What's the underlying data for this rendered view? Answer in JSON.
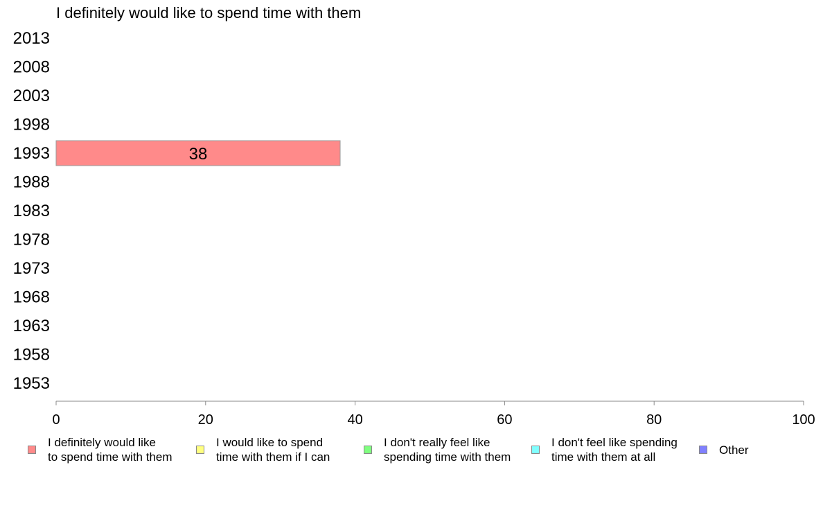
{
  "chart_data": {
    "type": "bar",
    "orientation": "horizontal",
    "title": "I definitely would like to spend time with them",
    "categories": [
      "2013",
      "2008",
      "2003",
      "1998",
      "1993",
      "1988",
      "1983",
      "1978",
      "1973",
      "1968",
      "1963",
      "1958",
      "1953"
    ],
    "series": [
      {
        "name": "I definitely would like to spend time with them",
        "color": "#ff8a8a",
        "values": [
          null,
          null,
          null,
          null,
          38,
          null,
          null,
          null,
          null,
          null,
          null,
          null,
          null
        ]
      }
    ],
    "xlim": [
      0,
      100
    ],
    "xticks": [
      "0",
      "20",
      "40",
      "60",
      "80",
      "100"
    ],
    "grid": false,
    "legend_position": "bottom"
  },
  "legend": [
    {
      "label": "I definitely would like\nto spend time with them",
      "color": "#ff8a8a"
    },
    {
      "label": "I would like to spend\ntime with them if I can",
      "color": "#ffff80"
    },
    {
      "label": "I don't really feel like\nspending time with them",
      "color": "#80ff80"
    },
    {
      "label": "I don't feel like spending\ntime with them at all",
      "color": "#80ffff"
    },
    {
      "label": "Other",
      "color": "#8080ff"
    }
  ]
}
